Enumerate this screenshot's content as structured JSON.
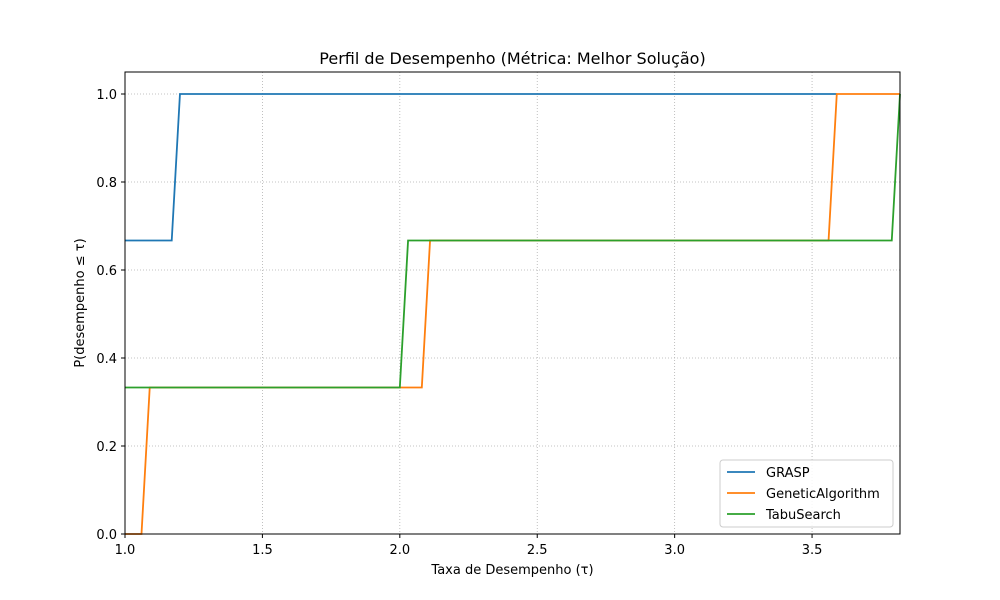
{
  "chart_data": {
    "type": "line",
    "title": "Perfil de Desempenho (Métrica: Melhor Solução)",
    "xlabel": "Taxa de Desempenho (τ)",
    "ylabel": "P(desempenho ≤ τ)",
    "xlim": [
      1.0,
      3.82
    ],
    "ylim": [
      0.0,
      1.05
    ],
    "xticks": [
      "1.0",
      "1.5",
      "2.0",
      "2.5",
      "3.0",
      "3.5"
    ],
    "xtick_values": [
      1.0,
      1.5,
      2.0,
      2.5,
      3.0,
      3.5
    ],
    "yticks": [
      "0.0",
      "0.2",
      "0.4",
      "0.6",
      "0.8",
      "1.0"
    ],
    "ytick_values": [
      0.0,
      0.2,
      0.4,
      0.6,
      0.8,
      1.0
    ],
    "grid": true,
    "legend_position": "bottom-right",
    "series": [
      {
        "name": "GRASP",
        "color": "#1f77b4",
        "x": [
          1.0,
          1.17,
          1.2,
          3.59
        ],
        "y": [
          0.667,
          0.667,
          1.0,
          1.0
        ]
      },
      {
        "name": "GeneticAlgorithm",
        "color": "#ff7f0e",
        "x": [
          1.0,
          1.06,
          1.09,
          2.08,
          2.11,
          3.56,
          3.59,
          3.82
        ],
        "y": [
          0.0,
          0.0,
          0.333,
          0.333,
          0.667,
          0.667,
          1.0,
          1.0
        ]
      },
      {
        "name": "TabuSearch",
        "color": "#2ca02c",
        "x": [
          1.0,
          2.0,
          2.03,
          3.79,
          3.82
        ],
        "y": [
          0.333,
          0.333,
          0.667,
          0.667,
          1.0
        ]
      }
    ]
  }
}
